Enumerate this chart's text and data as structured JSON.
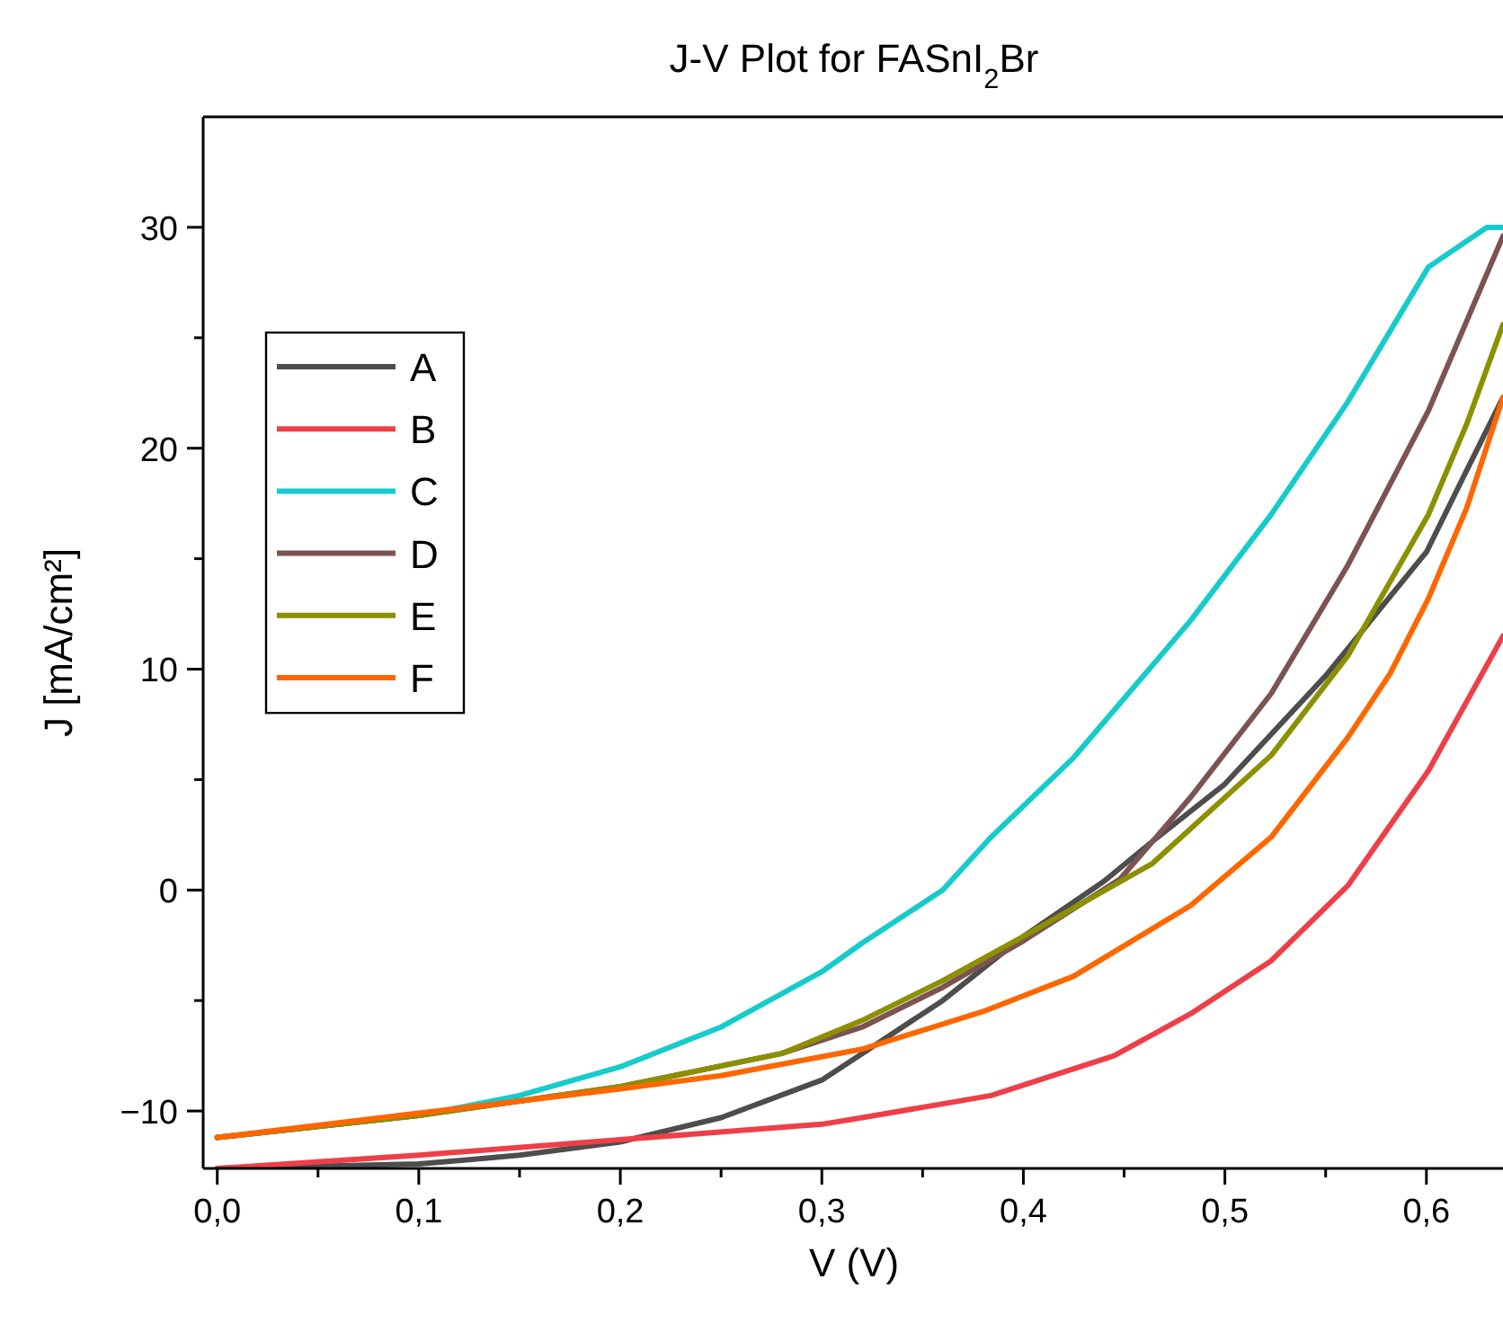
{
  "chart_data": {
    "type": "line",
    "title": "J-V Plot for FASnI$_{2}$Br",
    "xlabel": "V (V)",
    "ylabel": "J [mA/cm²]",
    "xlim": [
      -0.007,
      0.638
    ],
    "ylim": [
      -12.6,
      35
    ],
    "xticks": [
      {
        "value": 0,
        "label": "0,0"
      },
      {
        "value": 0.05,
        "label": null
      },
      {
        "value": 0.1,
        "label": "0,1"
      },
      {
        "value": 0.15,
        "label": null
      },
      {
        "value": 0.2,
        "label": "0,2"
      },
      {
        "value": 0.25,
        "label": null
      },
      {
        "value": 0.3,
        "label": "0,3"
      },
      {
        "value": 0.35,
        "label": null
      },
      {
        "value": 0.4,
        "label": "0,4"
      },
      {
        "value": 0.45,
        "label": null
      },
      {
        "value": 0.5,
        "label": "0,5"
      },
      {
        "value": 0.55,
        "label": null
      },
      {
        "value": 0.6,
        "label": "0,6"
      }
    ],
    "yticks": [
      {
        "value": -10,
        "label": "−10"
      },
      {
        "value": -5,
        "label": null
      },
      0,
      {
        "value": 5,
        "label": null
      },
      10,
      {
        "value": 15,
        "label": null
      },
      20,
      {
        "value": 25,
        "label": null
      },
      30
    ],
    "grid": false,
    "legend": "top left",
    "line_style": "solid",
    "marker": "none",
    "series": [
      {
        "name": "A",
        "color": "#4d4d4d",
        "x": [
          0,
          0.1,
          0.15,
          0.2,
          0.25,
          0.3,
          0.32,
          0.36,
          0.4,
          0.44,
          0.464,
          0.5,
          0.55,
          0.6,
          0.62,
          0.638
        ],
        "values": [
          -12.6,
          -12.4,
          -12.0,
          -11.4,
          -10.3,
          -8.6,
          -7.4,
          -5.0,
          -2.1,
          0.4,
          2.2,
          4.8,
          9.7,
          15.3,
          19.0,
          22.3
        ]
      },
      {
        "name": "B",
        "color": "#ee3f48",
        "x": [
          0,
          0.1,
          0.2,
          0.3,
          0.32,
          0.384,
          0.445,
          0.483,
          0.523,
          0.561,
          0.601,
          0.638
        ],
        "values": [
          -12.6,
          -12.0,
          -11.3,
          -10.6,
          -10.3,
          -9.3,
          -7.5,
          -5.6,
          -3.2,
          0.2,
          5.4,
          11.5
        ]
      },
      {
        "name": "C",
        "color": "#16cbcc",
        "x": [
          0,
          0.1,
          0.15,
          0.2,
          0.25,
          0.3,
          0.32,
          0.36,
          0.384,
          0.425,
          0.483,
          0.523,
          0.561,
          0.601,
          0.63,
          0.638
        ],
        "values": [
          -11.2,
          -10.2,
          -9.3,
          -8.0,
          -6.2,
          -3.7,
          -2.4,
          0.0,
          2.4,
          6.0,
          12.2,
          17.0,
          22.1,
          28.2,
          30,
          30
        ]
      },
      {
        "name": "D",
        "color": "#7c5353",
        "x": [
          0,
          0.1,
          0.2,
          0.28,
          0.32,
          0.36,
          0.4,
          0.448,
          0.483,
          0.523,
          0.561,
          0.601,
          0.638
        ],
        "values": [
          -11.2,
          -10.2,
          -8.9,
          -7.4,
          -6.2,
          -4.4,
          -2.3,
          0.5,
          4.2,
          8.9,
          14.7,
          21.7,
          29.6
        ]
      },
      {
        "name": "E",
        "color": "#8c9000",
        "x": [
          0,
          0.1,
          0.2,
          0.28,
          0.32,
          0.36,
          0.4,
          0.464,
          0.523,
          0.561,
          0.601,
          0.62,
          0.638
        ],
        "values": [
          -11.2,
          -10.2,
          -8.9,
          -7.4,
          -5.9,
          -4.1,
          -2.1,
          1.2,
          6.1,
          10.6,
          17.0,
          21.1,
          25.6
        ]
      },
      {
        "name": "F",
        "color": "#fe6600",
        "x": [
          0,
          0.1,
          0.2,
          0.25,
          0.32,
          0.38,
          0.425,
          0.483,
          0.523,
          0.561,
          0.582,
          0.601,
          0.62,
          0.638
        ],
        "values": [
          -11.2,
          -10.1,
          -9.0,
          -8.4,
          -7.2,
          -5.5,
          -3.9,
          -0.7,
          2.4,
          6.9,
          9.8,
          13.2,
          17.3,
          22.3
        ]
      }
    ]
  }
}
